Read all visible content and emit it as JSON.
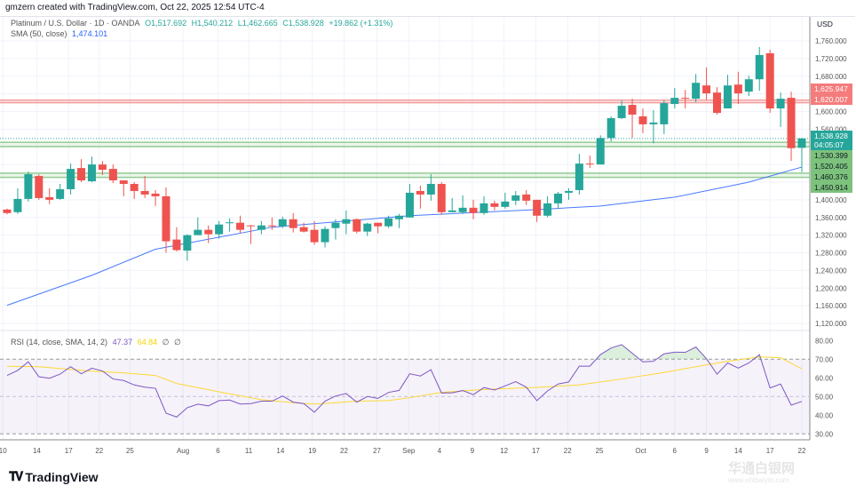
{
  "header": {
    "attribution": "gmzern created with TradingView.com, Oct 22, 2025 12:54 UTC-4"
  },
  "legend": {
    "symbol": "Platinum / U.S. Dollar · 1D · OANDA",
    "open": "O1,517.692",
    "high": "H1,540.212",
    "low": "L1,462.665",
    "close": "C1,538.928",
    "change": "+19.862 (+1.31%)",
    "sma_label": "SMA (50, close)",
    "sma_value": "1,474.101"
  },
  "rsi_legend": {
    "label": "RSI (14, close, SMA, 14, 2)",
    "rsi_value": "47.37",
    "sma_value": "64.84",
    "extra1": "∅",
    "extra2": "∅"
  },
  "currency": "USD",
  "countdown": "04:05:07",
  "brand": {
    "name": "TradingView",
    "mark": "TV"
  },
  "watermark": {
    "title": "华通白银网",
    "url": "www.ehtbaiyin.com"
  },
  "colors": {
    "up": "#26a69a",
    "down": "#ef5350",
    "sma": "#2962ff",
    "rsi": "#7e57c2",
    "rsi_sma": "#fdd835",
    "resistance": "#f28b8b",
    "support": "#7cc27c"
  },
  "chart_data": {
    "type": "candlestick",
    "price_axis": {
      "range": [
        1120,
        1760
      ],
      "ticks": [
        1760,
        1720,
        1680,
        1600,
        1560,
        1400,
        1360,
        1320,
        1280,
        1240,
        1200,
        1160,
        1120
      ]
    },
    "x_labels": [
      {
        "label": "10",
        "index": -0.4
      },
      {
        "label": "14",
        "index": 2.8
      },
      {
        "label": "17",
        "index": 5.8
      },
      {
        "label": "22",
        "index": 8.7
      },
      {
        "label": "25",
        "index": 11.6
      },
      {
        "label": "Aug",
        "index": 16.6
      },
      {
        "label": "6",
        "index": 19.9
      },
      {
        "label": "11",
        "index": 22.8
      },
      {
        "label": "14",
        "index": 25.8
      },
      {
        "label": "19",
        "index": 28.8
      },
      {
        "label": "22",
        "index": 31.8
      },
      {
        "label": "27",
        "index": 34.9
      },
      {
        "label": "Sep",
        "index": 37.9
      },
      {
        "label": "4",
        "index": 40.8
      },
      {
        "label": "9",
        "index": 43.9
      },
      {
        "label": "12",
        "index": 46.9
      },
      {
        "label": "17",
        "index": 49.9
      },
      {
        "label": "22",
        "index": 52.9
      },
      {
        "label": "25",
        "index": 55.9
      },
      {
        "label": "Oct",
        "index": 59.8
      },
      {
        "label": "6",
        "index": 63
      },
      {
        "label": "9",
        "index": 66
      },
      {
        "label": "14",
        "index": 69
      },
      {
        "label": "17",
        "index": 72
      },
      {
        "label": "22",
        "index": 75
      }
    ],
    "ohlc": [
      [
        1378,
        1380,
        1367,
        1370
      ],
      [
        1372,
        1426,
        1368,
        1402
      ],
      [
        1402,
        1464,
        1396,
        1458
      ],
      [
        1454,
        1458,
        1400,
        1404
      ],
      [
        1406,
        1426,
        1390,
        1400
      ],
      [
        1402,
        1436,
        1400,
        1424
      ],
      [
        1424,
        1482,
        1412,
        1470
      ],
      [
        1472,
        1492,
        1440,
        1444
      ],
      [
        1442,
        1498,
        1440,
        1480
      ],
      [
        1480,
        1488,
        1456,
        1468
      ],
      [
        1470,
        1480,
        1438,
        1444
      ],
      [
        1444,
        1444,
        1408,
        1436
      ],
      [
        1436,
        1440,
        1402,
        1420
      ],
      [
        1420,
        1454,
        1404,
        1412
      ],
      [
        1414,
        1422,
        1386,
        1408
      ],
      [
        1408,
        1428,
        1280,
        1306
      ],
      [
        1310,
        1338,
        1283,
        1286
      ],
      [
        1285,
        1322,
        1262,
        1320
      ],
      [
        1320,
        1360,
        1320,
        1332
      ],
      [
        1332,
        1342,
        1302,
        1322
      ],
      [
        1322,
        1352,
        1312,
        1344
      ],
      [
        1348,
        1358,
        1328,
        1349
      ],
      [
        1348,
        1364,
        1324,
        1332
      ],
      [
        1342,
        1343,
        1300,
        1340
      ],
      [
        1332,
        1352,
        1322,
        1342
      ],
      [
        1342,
        1360,
        1332,
        1340
      ],
      [
        1340,
        1362,
        1336,
        1356
      ],
      [
        1356,
        1370,
        1326,
        1336
      ],
      [
        1338,
        1348,
        1326,
        1328
      ],
      [
        1332,
        1352,
        1298,
        1304
      ],
      [
        1304,
        1340,
        1292,
        1334
      ],
      [
        1336,
        1356,
        1310,
        1348
      ],
      [
        1346,
        1376,
        1322,
        1356
      ],
      [
        1356,
        1358,
        1324,
        1328
      ],
      [
        1328,
        1348,
        1318,
        1346
      ],
      [
        1348,
        1348,
        1324,
        1340
      ],
      [
        1340,
        1364,
        1336,
        1358
      ],
      [
        1356,
        1368,
        1336,
        1364
      ],
      [
        1360,
        1436,
        1360,
        1416
      ],
      [
        1420,
        1432,
        1380,
        1412
      ],
      [
        1412,
        1458,
        1398,
        1436
      ],
      [
        1436,
        1440,
        1366,
        1372
      ],
      [
        1372,
        1404,
        1372,
        1376
      ],
      [
        1372,
        1410,
        1368,
        1382
      ],
      [
        1382,
        1400,
        1356,
        1370
      ],
      [
        1370,
        1408,
        1366,
        1392
      ],
      [
        1392,
        1398,
        1376,
        1384
      ],
      [
        1384,
        1416,
        1380,
        1396
      ],
      [
        1398,
        1420,
        1388,
        1410
      ],
      [
        1412,
        1422,
        1388,
        1398
      ],
      [
        1400,
        1400,
        1350,
        1364
      ],
      [
        1364,
        1408,
        1360,
        1392
      ],
      [
        1392,
        1418,
        1380,
        1414
      ],
      [
        1416,
        1426,
        1400,
        1420
      ],
      [
        1422,
        1504,
        1412,
        1482
      ],
      [
        1482,
        1500,
        1472,
        1481
      ],
      [
        1480,
        1546,
        1480,
        1540
      ],
      [
        1540,
        1589,
        1532,
        1585
      ],
      [
        1585,
        1625,
        1583,
        1613
      ],
      [
        1615,
        1629,
        1540,
        1593
      ],
      [
        1589,
        1607,
        1551,
        1571
      ],
      [
        1571,
        1603,
        1528,
        1575
      ],
      [
        1571,
        1625,
        1549,
        1619
      ],
      [
        1617,
        1653,
        1607,
        1631
      ],
      [
        1631,
        1649,
        1607,
        1629
      ],
      [
        1629,
        1685,
        1621,
        1665
      ],
      [
        1659,
        1700,
        1627,
        1641
      ],
      [
        1643,
        1655,
        1593,
        1597
      ],
      [
        1607,
        1683,
        1607,
        1659
      ],
      [
        1661,
        1690,
        1617,
        1641
      ],
      [
        1645,
        1681,
        1635,
        1673
      ],
      [
        1673,
        1746,
        1647,
        1728
      ],
      [
        1732,
        1740,
        1597,
        1607
      ],
      [
        1607,
        1643,
        1565,
        1629
      ],
      [
        1631,
        1645,
        1488,
        1517
      ],
      [
        1517.692,
        1540.212,
        1462.665,
        1538.928
      ]
    ],
    "sma50": [
      [
        0,
        1161
      ],
      [
        8,
        1229
      ],
      [
        14,
        1288
      ],
      [
        25,
        1338
      ],
      [
        38,
        1364
      ],
      [
        50,
        1378
      ],
      [
        56,
        1386
      ],
      [
        63,
        1406
      ],
      [
        70,
        1440
      ],
      [
        75,
        1474.101
      ]
    ],
    "levels": [
      {
        "price": 1625.947,
        "label": "1,625.947",
        "kind": "resistance"
      },
      {
        "price": 1620.007,
        "label": "1,620.007",
        "kind": "resistance"
      },
      {
        "price": 1530.399,
        "label": "1,530.399",
        "kind": "support"
      },
      {
        "price": 1520.405,
        "label": "1,520.405",
        "kind": "support"
      },
      {
        "price": 1460.376,
        "label": "1,460.376",
        "kind": "support"
      },
      {
        "price": 1450.914,
        "label": "1,450.914",
        "kind": "support"
      }
    ],
    "last_price": {
      "price": 1538.928,
      "label": "1,538.928"
    },
    "rsi": {
      "range": [
        25,
        85
      ],
      "ticks": [
        "80.00",
        "70.00",
        "60.00",
        "50.00",
        "40.00",
        "30.00"
      ],
      "bands": [
        70,
        50,
        30
      ],
      "values": [
        61.3,
        64,
        68.6,
        60.6,
        59.8,
        62,
        66,
        62.2,
        65.2,
        63.7,
        59.4,
        58.6,
        56.2,
        55,
        54.4,
        41.1,
        39,
        44,
        45.9,
        45,
        47.8,
        48.1,
        46,
        46.2,
        47.5,
        47.5,
        50.3,
        47,
        46.2,
        41.6,
        47.5,
        50.3,
        51.6,
        47,
        50,
        49,
        52.2,
        53.3,
        62.2,
        61,
        64.4,
        51.9,
        52,
        53.2,
        51,
        54.8,
        53.5,
        55.7,
        58,
        55,
        47.8,
        53,
        56.7,
        57.8,
        66.3,
        66.3,
        72.5,
        76,
        77.8,
        73.2,
        68.6,
        68.9,
        72.9,
        73.8,
        73.7,
        76.5,
        70.3,
        62,
        68,
        65.2,
        68,
        72.4,
        54.6,
        56.7,
        45.4,
        47.37
      ],
      "sma": [
        [
          0,
          66.2
        ],
        [
          3,
          66
        ],
        [
          8,
          63.6
        ],
        [
          11,
          62.7
        ],
        [
          14,
          61.3
        ],
        [
          16,
          57
        ],
        [
          20,
          52.5
        ],
        [
          24,
          48.3
        ],
        [
          27,
          46.7
        ],
        [
          29,
          45.9
        ],
        [
          33,
          47.5
        ],
        [
          36,
          47.8
        ],
        [
          38,
          49.4
        ],
        [
          40,
          51.3
        ],
        [
          41,
          52.2
        ],
        [
          45,
          53.8
        ],
        [
          50,
          54.9
        ],
        [
          54,
          56.2
        ],
        [
          58,
          59.4
        ],
        [
          62,
          62.9
        ],
        [
          66,
          67
        ],
        [
          68,
          68.9
        ],
        [
          71,
          71.3
        ],
        [
          73,
          70.8
        ],
        [
          75,
          64.84
        ]
      ]
    }
  }
}
